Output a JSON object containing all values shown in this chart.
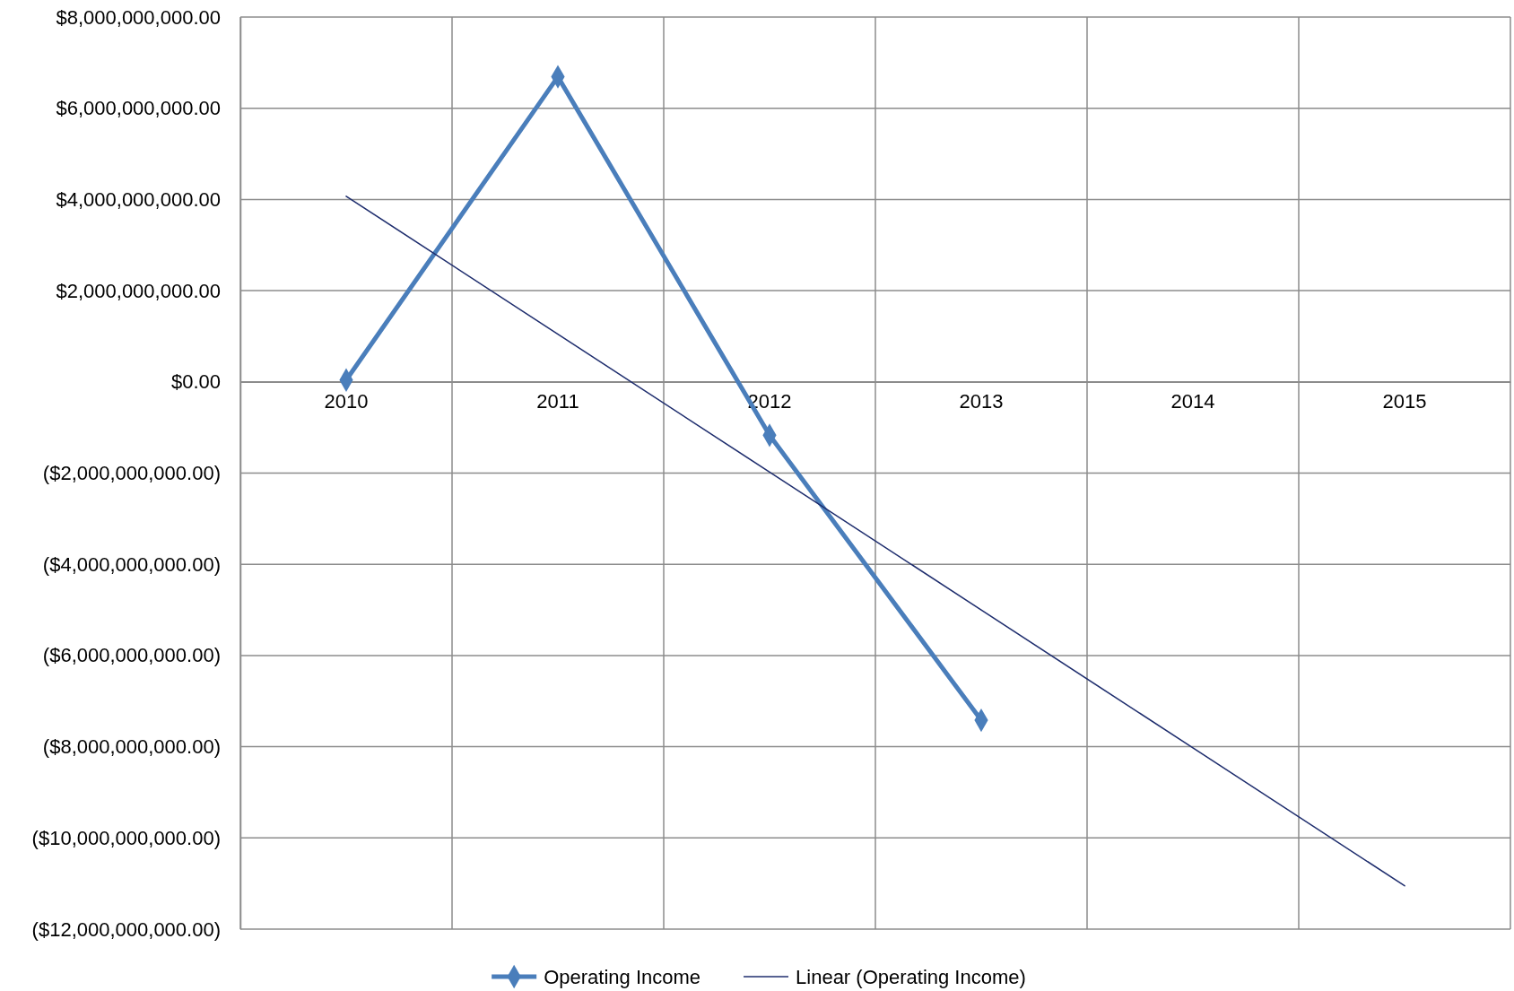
{
  "chart_data": {
    "type": "line",
    "categories": [
      "2010",
      "2011",
      "2012",
      "2013",
      "2014",
      "2015"
    ],
    "series": [
      {
        "name": "Operating Income",
        "color": "#4a7ebb",
        "values": [
          40000000,
          6690000000,
          -1170000000,
          -7420000000,
          null,
          null
        ],
        "marker": "diamond"
      },
      {
        "name": "Linear (Operating Income)",
        "color": "#1f2e6e",
        "values": [
          4070000000,
          1046000000,
          -1978000000,
          -5002000000,
          -8026000000,
          -11050000000
        ],
        "marker": "none"
      }
    ],
    "ylim": [
      -12000000000,
      8000000000
    ],
    "yticks": [
      {
        "value": -12000000000,
        "label": "($12,000,000,000.00)"
      },
      {
        "value": -10000000000,
        "label": "($10,000,000,000.00)"
      },
      {
        "value": -8000000000,
        "label": "($8,000,000,000.00)"
      },
      {
        "value": -6000000000,
        "label": "($6,000,000,000.00)"
      },
      {
        "value": -4000000000,
        "label": "($4,000,000,000.00)"
      },
      {
        "value": -2000000000,
        "label": "($2,000,000,000.00)"
      },
      {
        "value": 0,
        "label": "$0.00"
      },
      {
        "value": 2000000000,
        "label": "$2,000,000,000.00"
      },
      {
        "value": 4000000000,
        "label": "$4,000,000,000.00"
      },
      {
        "value": 6000000000,
        "label": "$6,000,000,000.00"
      },
      {
        "value": 8000000000,
        "label": "$8,000,000,000.00"
      }
    ],
    "grid": true,
    "legend": "bottom"
  }
}
